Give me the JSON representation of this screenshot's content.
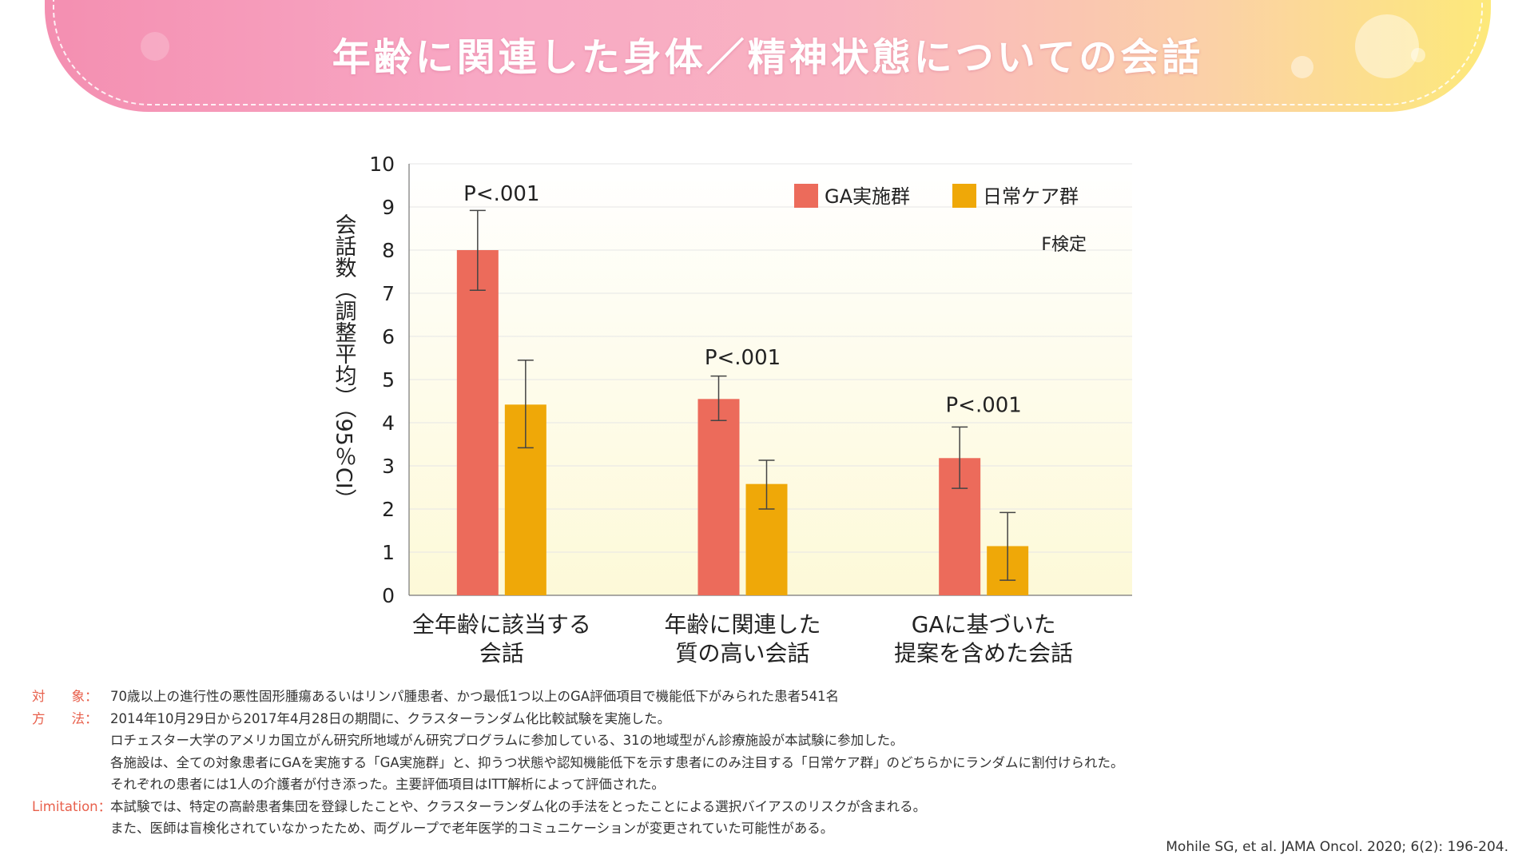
{
  "title": "年齢に関連した身体／精神状態についての会話",
  "chart_data": {
    "type": "bar",
    "ylabel": "会話数（調整平均）（95％CI）",
    "ylim": [
      0,
      10
    ],
    "yticks": [
      0,
      1,
      2,
      3,
      4,
      5,
      6,
      7,
      8,
      9,
      10
    ],
    "categories": [
      [
        "全年齢に該当する",
        "会話"
      ],
      [
        "年齢に関連した",
        "質の高い会話"
      ],
      [
        "GAに基づいた",
        "提案を含めた会話"
      ]
    ],
    "series": [
      {
        "name": "GA実施群",
        "color": "#ec6b5b",
        "values": [
          8.0,
          4.55,
          3.18
        ],
        "ci_low": [
          7.07,
          4.05,
          2.48
        ],
        "ci_high": [
          8.92,
          5.08,
          3.9
        ]
      },
      {
        "name": "日常ケア群",
        "color": "#efa808",
        "values": [
          4.42,
          2.58,
          1.14
        ],
        "ci_low": [
          3.42,
          2.0,
          0.35
        ],
        "ci_high": [
          5.45,
          3.13,
          1.92
        ]
      }
    ],
    "annotations": [
      "P<.001",
      "P<.001",
      "P<.001"
    ],
    "annotation_y": [
      9.15,
      5.35,
      4.25
    ],
    "test_label": "F検定",
    "legend_position": "top-right",
    "grid": true
  },
  "footnotes": [
    {
      "label": "対　　象：",
      "lines": [
        "70歳以上の進行性の悪性固形腫瘍あるいはリンパ腫患者、かつ最低1つ以上のGA評価項目で機能低下がみられた患者541名"
      ]
    },
    {
      "label": "方　　法：",
      "lines": [
        "2014年10月29日から2017年4月28日の期間に、クラスターランダム化比較試験を実施した。",
        "ロチェスター大学のアメリカ国立がん研究所地域がん研究プログラムに参加している、31の地域型がん診療施設が本試験に参加した。",
        "各施設は、全ての対象患者にGAを実施する「GA実施群」と、抑うつ状態や認知機能低下を示す患者にのみ注目する「日常ケア群」のどちらかにランダムに割付けられた。",
        "それぞれの患者には1人の介護者が付き添った。主要評価項目はITT解析によって評価された。"
      ]
    },
    {
      "label": "Limitation：",
      "lines": [
        "本試験では、特定の高齢患者集団を登録したことや、クラスターランダム化の手法をとったことによる選択バイアスのリスクが含まれる。",
        "また、医師は盲検化されていなかったため、両グループで老年医学的コミュニケーションが変更されていた可能性がある。"
      ]
    }
  ],
  "citation": "Mohile SG, et al. JAMA Oncol. 2020; 6(2): 196-204."
}
